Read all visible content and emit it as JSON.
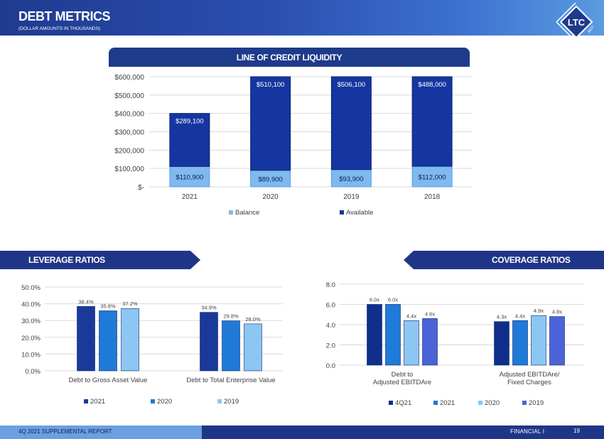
{
  "header": {
    "title": "DEBT METRICS",
    "subtitle": "(DOLLAR AMOUNTS  IN THOUSANDS)",
    "logo_text": "LTC",
    "logo_sub": "REIT"
  },
  "sections": {
    "line_of_credit": "LINE OF CREDIT LIQUIDITY",
    "leverage": "LEVERAGE RATIOS",
    "coverage": "COVERAGE RATIOS"
  },
  "footer": {
    "left": "4Q 2021 SUPPLEMENTAL REPORT",
    "right": "FINANCIAL    I",
    "page": "19"
  },
  "colors": {
    "header_band": "#2a4fb0",
    "dark_navy": "#1e3a8a",
    "series_2021": "#1a3a9a",
    "series_2020": "#1f7ad8",
    "series_2019": "#8cc6f2",
    "series_4q21": "#0f2f8a",
    "series_2019_cov": "#4a64d8"
  },
  "chart_data": [
    {
      "type": "bar",
      "stacked": true,
      "categories": [
        "2021",
        "2020",
        "2019",
        "2018"
      ],
      "series": [
        {
          "name": "Balance",
          "values": [
            110900,
            89900,
            93900,
            112000
          ],
          "labels": [
            "$110,900",
            "$89,900",
            "$93,900",
            "$112,000"
          ],
          "color": "#7fb9ee"
        },
        {
          "name": "Available",
          "values": [
            289100,
            510100,
            506100,
            488000
          ],
          "labels": [
            "$289,100",
            "$510,100",
            "$506,100",
            "$488,000"
          ],
          "color": "#1536a0"
        }
      ],
      "ylim": [
        0,
        600000
      ],
      "yticks": [
        0,
        100000,
        200000,
        300000,
        400000,
        500000,
        600000
      ],
      "yticklabels": [
        "$-",
        "$100,000",
        "$200,000",
        "$300,000",
        "$400,000",
        "$500,000",
        "$600,000"
      ],
      "grid": true,
      "legend": "bottom"
    },
    {
      "type": "bar",
      "categories": [
        "Debt to Gross Asset Value",
        "Debt to Total Enterprise Value"
      ],
      "series": [
        {
          "name": "2021",
          "values": [
            38.4,
            34.9
          ],
          "labels": [
            "38.4%",
            "34.9%"
          ],
          "color": "#1a3a9a"
        },
        {
          "name": "2020",
          "values": [
            35.8,
            29.8
          ],
          "labels": [
            "35.8%",
            "29.8%"
          ],
          "color": "#1f7ad8"
        },
        {
          "name": "2019",
          "values": [
            37.2,
            28.0
          ],
          "labels": [
            "37.2%",
            "28.0%"
          ],
          "color": "#8cc6f2"
        }
      ],
      "ylim": [
        0,
        50
      ],
      "yticks": [
        0,
        10,
        20,
        30,
        40,
        50
      ],
      "yticklabels": [
        "0.0%",
        "10.0%",
        "20.0%",
        "30.0%",
        "40.0%",
        "50.0%"
      ],
      "grid": true,
      "legend": "bottom"
    },
    {
      "type": "bar",
      "categories": [
        "Debt to\nAdjusted EBITDAre",
        "Adjusted EBITDAre/\nFixed Charges"
      ],
      "series": [
        {
          "name": "4Q21",
          "values": [
            6.0,
            4.3
          ],
          "labels": [
            "6.0x",
            "4.3x"
          ],
          "color": "#0f2f8a"
        },
        {
          "name": "2021",
          "values": [
            6.0,
            4.4
          ],
          "labels": [
            "6.0x",
            "4.4x"
          ],
          "color": "#1f7ad8"
        },
        {
          "name": "2020",
          "values": [
            4.4,
            4.9
          ],
          "labels": [
            "4.4x",
            "4.9x"
          ],
          "color": "#8cc6f2"
        },
        {
          "name": "2019",
          "values": [
            4.6,
            4.8
          ],
          "labels": [
            "4.6x",
            "4.8x"
          ],
          "color": "#4a64d8"
        }
      ],
      "ylim": [
        0,
        8
      ],
      "yticks": [
        0,
        2,
        4,
        6,
        8
      ],
      "yticklabels": [
        "0.0",
        "2.0",
        "4.0",
        "6.0",
        "8.0"
      ],
      "grid": true,
      "legend": "bottom"
    }
  ]
}
